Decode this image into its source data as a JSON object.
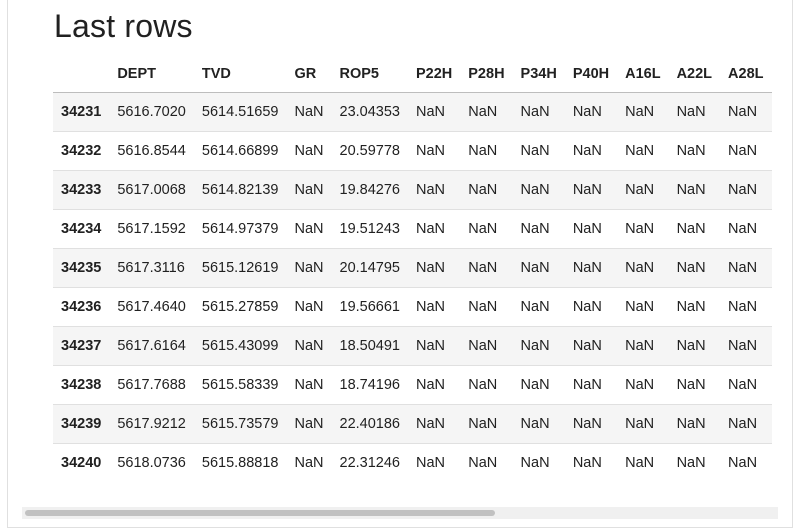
{
  "title": "Last rows",
  "table": {
    "columns": [
      "",
      "DEPT",
      "TVD",
      "GR",
      "ROP5",
      "P22H",
      "P28H",
      "P34H",
      "P40H",
      "A16L",
      "A22L",
      "A28L"
    ],
    "rows": [
      [
        "34231",
        "5616.7020",
        "5614.51659",
        "NaN",
        "23.04353",
        "NaN",
        "NaN",
        "NaN",
        "NaN",
        "NaN",
        "NaN",
        "NaN"
      ],
      [
        "34232",
        "5616.8544",
        "5614.66899",
        "NaN",
        "20.59778",
        "NaN",
        "NaN",
        "NaN",
        "NaN",
        "NaN",
        "NaN",
        "NaN"
      ],
      [
        "34233",
        "5617.0068",
        "5614.82139",
        "NaN",
        "19.84276",
        "NaN",
        "NaN",
        "NaN",
        "NaN",
        "NaN",
        "NaN",
        "NaN"
      ],
      [
        "34234",
        "5617.1592",
        "5614.97379",
        "NaN",
        "19.51243",
        "NaN",
        "NaN",
        "NaN",
        "NaN",
        "NaN",
        "NaN",
        "NaN"
      ],
      [
        "34235",
        "5617.3116",
        "5615.12619",
        "NaN",
        "20.14795",
        "NaN",
        "NaN",
        "NaN",
        "NaN",
        "NaN",
        "NaN",
        "NaN"
      ],
      [
        "34236",
        "5617.4640",
        "5615.27859",
        "NaN",
        "19.56661",
        "NaN",
        "NaN",
        "NaN",
        "NaN",
        "NaN",
        "NaN",
        "NaN"
      ],
      [
        "34237",
        "5617.6164",
        "5615.43099",
        "NaN",
        "18.50491",
        "NaN",
        "NaN",
        "NaN",
        "NaN",
        "NaN",
        "NaN",
        "NaN"
      ],
      [
        "34238",
        "5617.7688",
        "5615.58339",
        "NaN",
        "18.74196",
        "NaN",
        "NaN",
        "NaN",
        "NaN",
        "NaN",
        "NaN",
        "NaN"
      ],
      [
        "34239",
        "5617.9212",
        "5615.73579",
        "NaN",
        "22.40186",
        "NaN",
        "NaN",
        "NaN",
        "NaN",
        "NaN",
        "NaN",
        "NaN"
      ],
      [
        "34240",
        "5618.0736",
        "5615.88818",
        "NaN",
        "22.31246",
        "NaN",
        "NaN",
        "NaN",
        "NaN",
        "NaN",
        "NaN",
        "NaN"
      ]
    ]
  },
  "colors": {
    "striped_row": "#f5f5f5",
    "border": "#e0e0e0",
    "scroll_thumb": "#c1c1c1"
  }
}
